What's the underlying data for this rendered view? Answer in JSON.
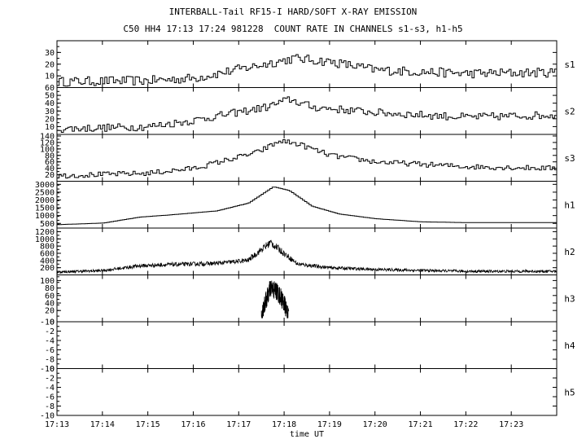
{
  "title": "INTERBALL-Tail RF15-I HARD/SOFT X-RAY EMISSION",
  "subtitle": "C50 HH4 17:13 17:24 981228  COUNT RATE IN CHANNELS s1-s3, h1-h5",
  "chart_data": {
    "type": "line",
    "title": "INTERBALL-Tail RF15-I HARD/SOFT X-RAY EMISSION",
    "subtitle": "C50 HH4 17:13 17:24 981228  COUNT RATE IN CHANNELS s1-s3, h1-h5",
    "xlabel": "time UT",
    "x_ticks": [
      "17:13",
      "17:14",
      "17:15",
      "17:16",
      "17:17",
      "17:18",
      "17:19",
      "17:20",
      "17:21",
      "17:22",
      "17:23"
    ],
    "xlim": [
      "17:13",
      "17:24"
    ],
    "panels": [
      {
        "name": "s1",
        "ylim": [
          0,
          40
        ],
        "yticks": [
          "10",
          "20",
          "30"
        ],
        "style": "step",
        "profile": [
          [
            0,
            5
          ],
          [
            2,
            6
          ],
          [
            3,
            8
          ],
          [
            4.3,
            18
          ],
          [
            5.2,
            25
          ],
          [
            6,
            22
          ],
          [
            7,
            15
          ],
          [
            9,
            12
          ],
          [
            11,
            13
          ]
        ],
        "noise": 4
      },
      {
        "name": "s2",
        "ylim": [
          0,
          60
        ],
        "yticks": [
          "10",
          "20",
          "30",
          "40",
          "50",
          "60"
        ],
        "style": "step",
        "profile": [
          [
            0,
            7
          ],
          [
            2,
            10
          ],
          [
            3,
            18
          ],
          [
            4.6,
            35
          ],
          [
            5.1,
            45
          ],
          [
            5.6,
            35
          ],
          [
            7,
            28
          ],
          [
            9,
            22
          ],
          [
            11,
            25
          ]
        ],
        "noise": 5
      },
      {
        "name": "s3",
        "ylim": [
          0,
          145
        ],
        "yticks": [
          "20",
          "40",
          "60",
          "80",
          "100",
          "120",
          "140"
        ],
        "style": "step",
        "profile": [
          [
            0,
            17
          ],
          [
            2,
            25
          ],
          [
            3,
            40
          ],
          [
            4.4,
            90
          ],
          [
            4.9,
            125
          ],
          [
            5.3,
            115
          ],
          [
            6,
            80
          ],
          [
            7,
            60
          ],
          [
            9,
            45
          ],
          [
            11,
            40
          ]
        ],
        "noise": 8
      },
      {
        "name": "h1",
        "ylim": [
          200,
          3200
        ],
        "yticks": [
          "500",
          "1000",
          "1500",
          "2000",
          "2500",
          "3000"
        ],
        "style": "step",
        "profile": [
          [
            0,
            420
          ],
          [
            1,
            520
          ],
          [
            1.8,
            900
          ],
          [
            2.5,
            1050
          ],
          [
            3.5,
            1300
          ],
          [
            4.2,
            1800
          ],
          [
            4.75,
            2850
          ],
          [
            5.1,
            2600
          ],
          [
            5.6,
            1600
          ],
          [
            6.2,
            1100
          ],
          [
            7,
            800
          ],
          [
            8,
            600
          ],
          [
            9,
            550
          ],
          [
            10,
            550
          ],
          [
            11,
            550
          ]
        ],
        "noise": 0
      },
      {
        "name": "h2",
        "ylim": [
          0,
          1300
        ],
        "yticks": [
          "200",
          "400",
          "600",
          "800",
          "1000",
          "1200"
        ],
        "style": "noisy",
        "profile": [
          [
            0,
            80
          ],
          [
            1,
            120
          ],
          [
            1.8,
            250
          ],
          [
            2.3,
            280
          ],
          [
            3.5,
            320
          ],
          [
            4.2,
            400
          ],
          [
            4.7,
            900
          ],
          [
            4.9,
            700
          ],
          [
            5.3,
            300
          ],
          [
            6,
            200
          ],
          [
            7,
            150
          ],
          [
            9,
            100
          ],
          [
            11,
            100
          ]
        ],
        "noise": 90
      },
      {
        "name": "h3",
        "ylim": [
          -10,
          115
        ],
        "yticks": [
          "-10",
          "20",
          "40",
          "60",
          "80",
          "100"
        ],
        "style": "burst",
        "profile": [
          [
            4.5,
            0
          ],
          [
            4.55,
            30
          ],
          [
            4.7,
            80
          ],
          [
            4.85,
            70
          ],
          [
            5.0,
            40
          ],
          [
            5.1,
            0
          ]
        ],
        "noise": 25
      },
      {
        "name": "h4",
        "ylim": [
          -10,
          0
        ],
        "yticks": [
          "-10",
          "-8",
          "-6",
          "-4",
          "-2",
          "0"
        ],
        "style": "empty",
        "profile": [],
        "noise": 0
      },
      {
        "name": "h5",
        "ylim": [
          -10,
          0
        ],
        "yticks": [
          "-10",
          "-8",
          "-6",
          "-4",
          "-2",
          "0"
        ],
        "style": "empty",
        "profile": [],
        "noise": 0
      }
    ]
  }
}
